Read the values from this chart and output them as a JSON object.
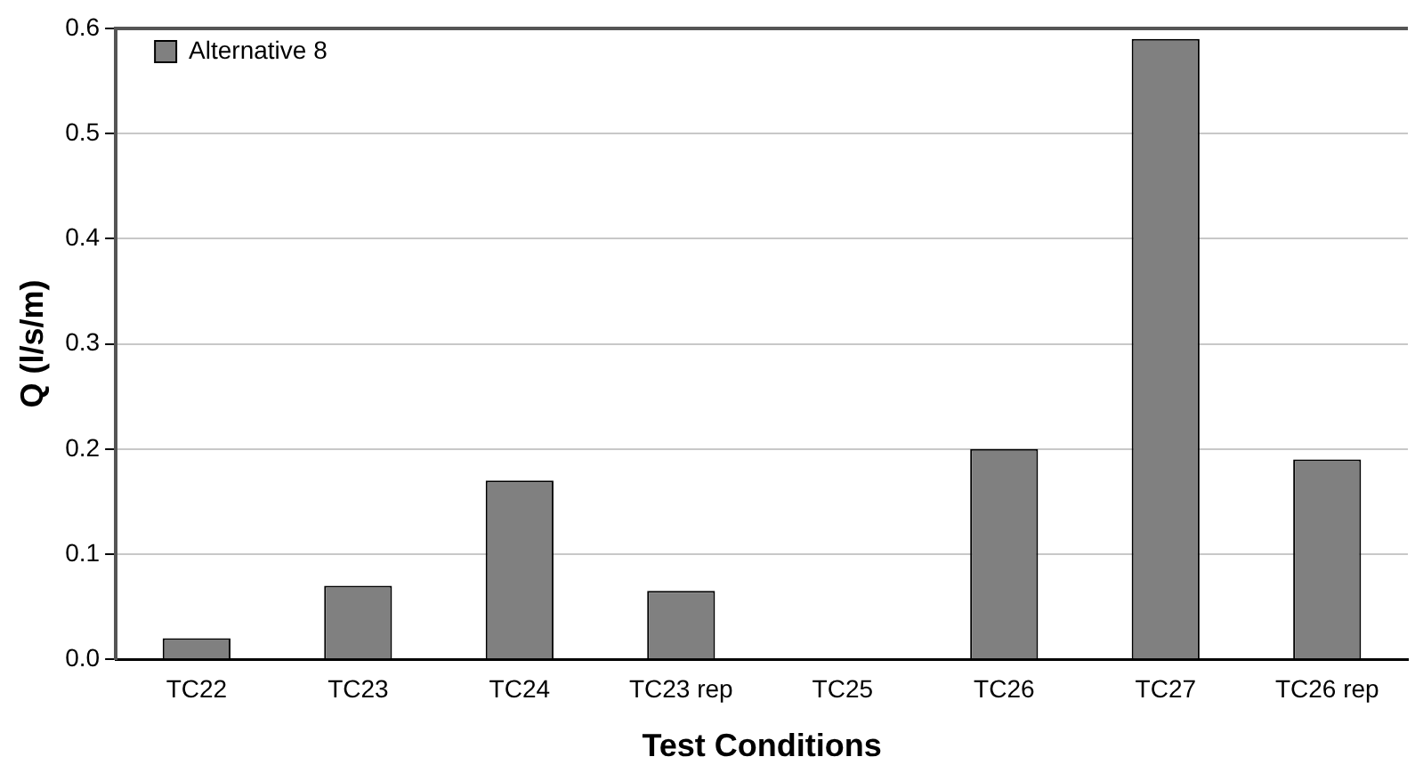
{
  "chart_data": {
    "type": "bar",
    "xlabel": "Test Conditions",
    "ylabel": "Q (l/s/m)",
    "categories": [
      "TC22",
      "TC23",
      "TC24",
      "TC23 rep",
      "TC25",
      "TC26",
      "TC27",
      "TC26 rep"
    ],
    "series": [
      {
        "name": "Alternative 8",
        "color": "#808080",
        "values": [
          0.02,
          0.07,
          0.17,
          0.065,
          null,
          0.2,
          0.59,
          0.19
        ]
      }
    ],
    "ylim": [
      0,
      0.6
    ],
    "yticks": [
      {
        "value": 0,
        "label": "0.0"
      },
      {
        "value": 0.1,
        "label": "0.1"
      },
      {
        "value": 0.2,
        "label": "0.2"
      },
      {
        "value": 0.3,
        "label": "0.3"
      },
      {
        "value": 0.4,
        "label": "0.4"
      },
      {
        "value": 0.5,
        "label": "0.5"
      },
      {
        "value": 0.6,
        "label": "0.6"
      }
    ],
    "grid": "y",
    "legend": "top left"
  }
}
